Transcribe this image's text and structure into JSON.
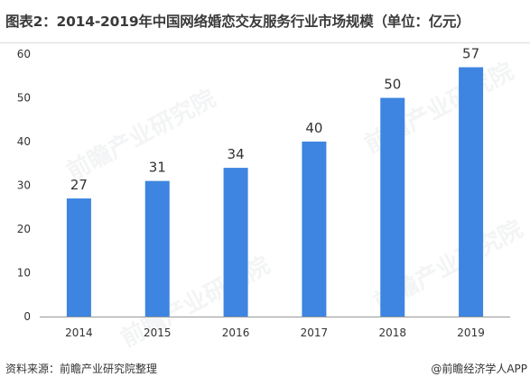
{
  "title": "图表2：2014-2019年中国网络婚恋交友服务行业市场规模（单位：亿元）",
  "source": "资料来源：前瞻产业研究院整理",
  "brand": "@前瞻经济学人APP",
  "watermark": "前瞻产业研究院",
  "colors": {
    "bar": "#3d85e0",
    "axis": "#999999",
    "text": "#333333"
  },
  "chart_data": {
    "type": "bar",
    "title": "图表2：2014-2019年中国网络婚恋交友服务行业市场规模（单位：亿元）",
    "categories": [
      "2014",
      "2015",
      "2016",
      "2017",
      "2018",
      "2019"
    ],
    "values": [
      27,
      31,
      34,
      40,
      50,
      57
    ],
    "ylim": [
      0,
      60
    ],
    "yticks": [
      0,
      10,
      20,
      30,
      40,
      50,
      60
    ],
    "grid": false,
    "xlabel": "",
    "ylabel": ""
  }
}
